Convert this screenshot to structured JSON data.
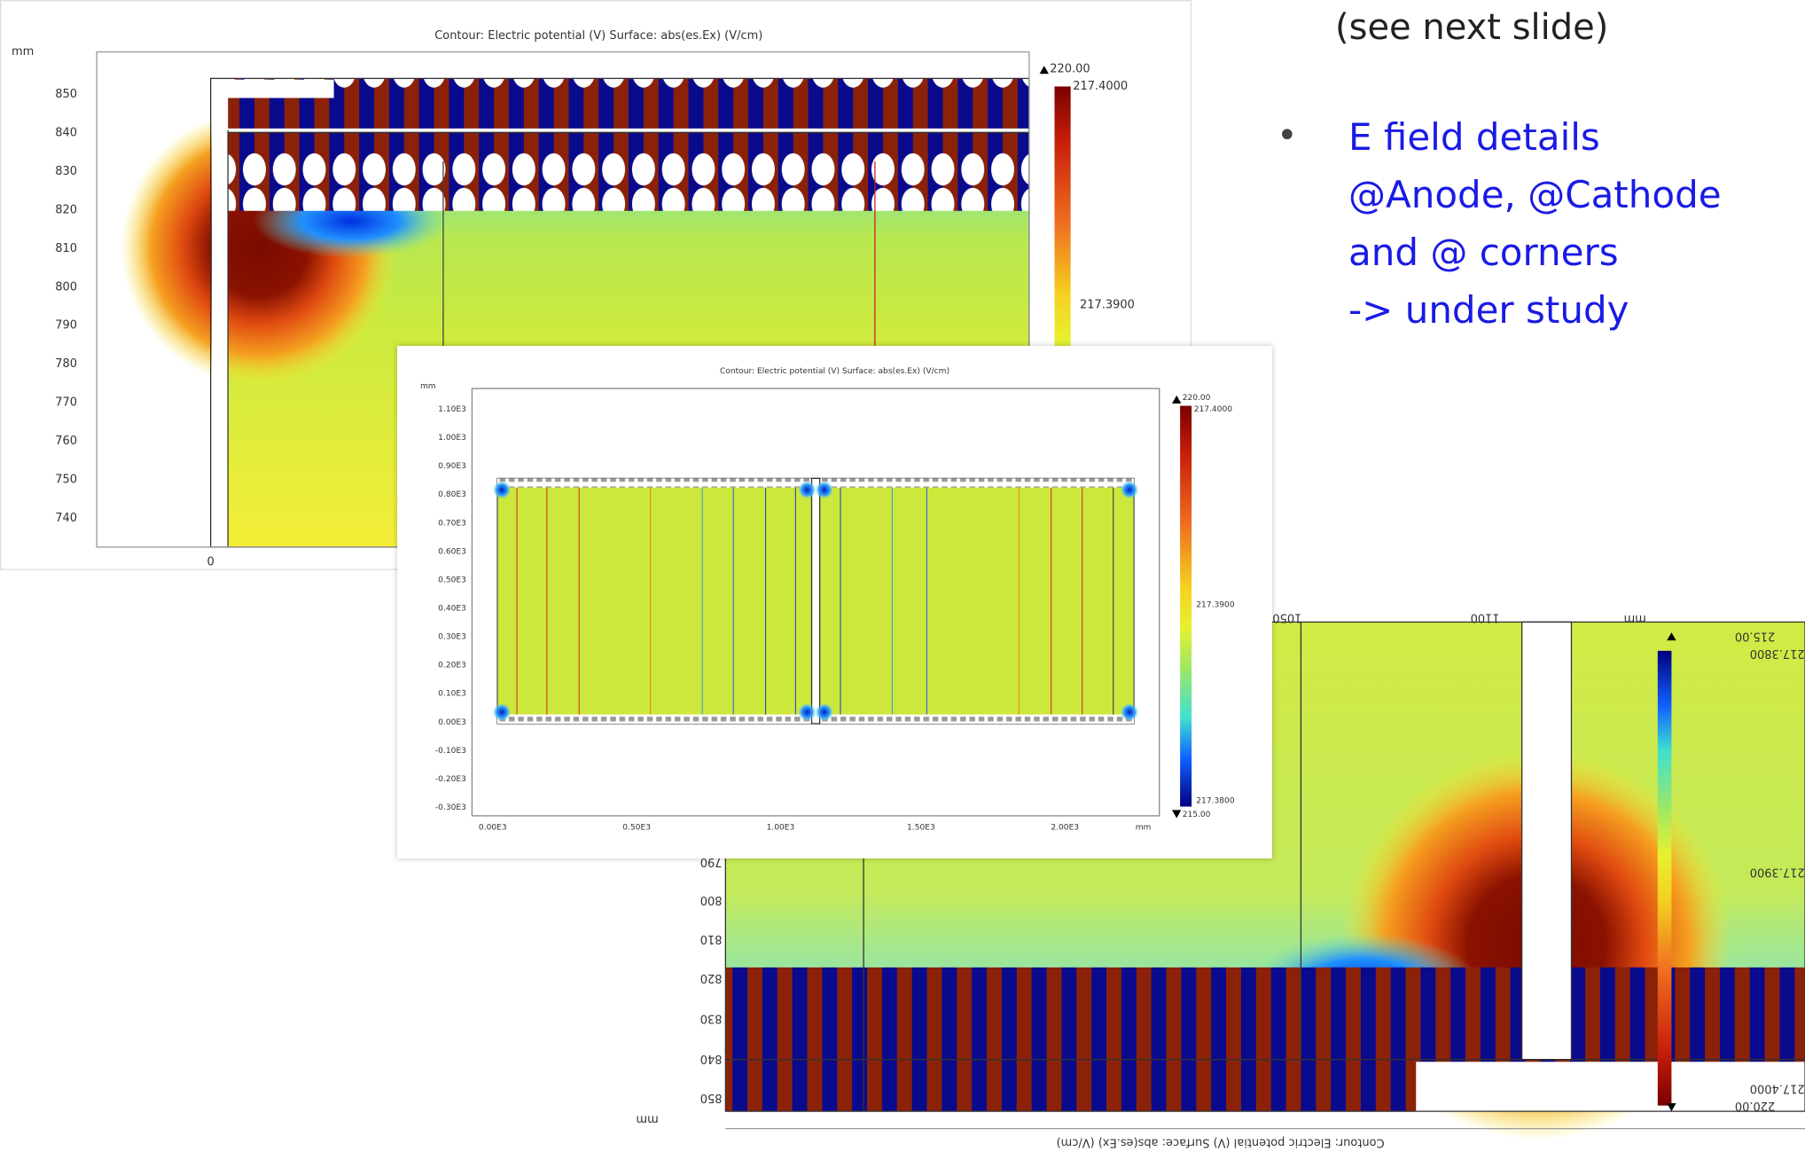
{
  "slide": {
    "note": "(see next slide)",
    "bullet": [
      "E field details",
      "@Anode, @Cathode",
      "and @ corners",
      "-> under study"
    ]
  },
  "plots": [
    {
      "title": "Contour: Electric potential (V)  Surface: abs(es.Ex) (V/cm)",
      "units": [
        "mm"
      ],
      "yticks": [
        "850",
        "840",
        "830",
        "820",
        "810",
        "800",
        "790",
        "780",
        "770",
        "760",
        "750",
        "740"
      ],
      "xticks": [
        "0"
      ],
      "colorbar": [
        "220.00",
        "217.4000",
        "217.3900"
      ]
    },
    {
      "title": "Contour: Electric potential (V)  Surface: abs(es.Ex) (V/cm)",
      "units": [
        "mm",
        "mm"
      ],
      "yticks": [
        "1.10E3",
        "1.00E3",
        "0.90E3",
        "0.80E3",
        "0.70E3",
        "0.60E3",
        "0.50E3",
        "0.40E3",
        "0.30E3",
        "0.20E3",
        "0.10E3",
        "0.00E3",
        "-0.10E3",
        "-0.20E3",
        "-0.30E3"
      ],
      "xticks": [
        "0.00E3",
        "0.50E3",
        "1.00E3",
        "1.50E3",
        "2.00E3"
      ],
      "colorbar": [
        "220.00",
        "217.4000",
        "217.3900",
        "217.3800",
        "215.00"
      ]
    },
    {
      "title": "Contour: Electric potential (V)  Surface: abs(es.Ex) (V/cm)",
      "units": [
        "mm",
        "mm"
      ],
      "yticks": [
        "790",
        "800",
        "810",
        "820",
        "830",
        "840",
        "850"
      ],
      "xticks": [
        "1050",
        "1100"
      ],
      "colorbar": [
        "215.00",
        "217.3800",
        "217.3900",
        "217.4000",
        "220.00"
      ]
    }
  ]
}
